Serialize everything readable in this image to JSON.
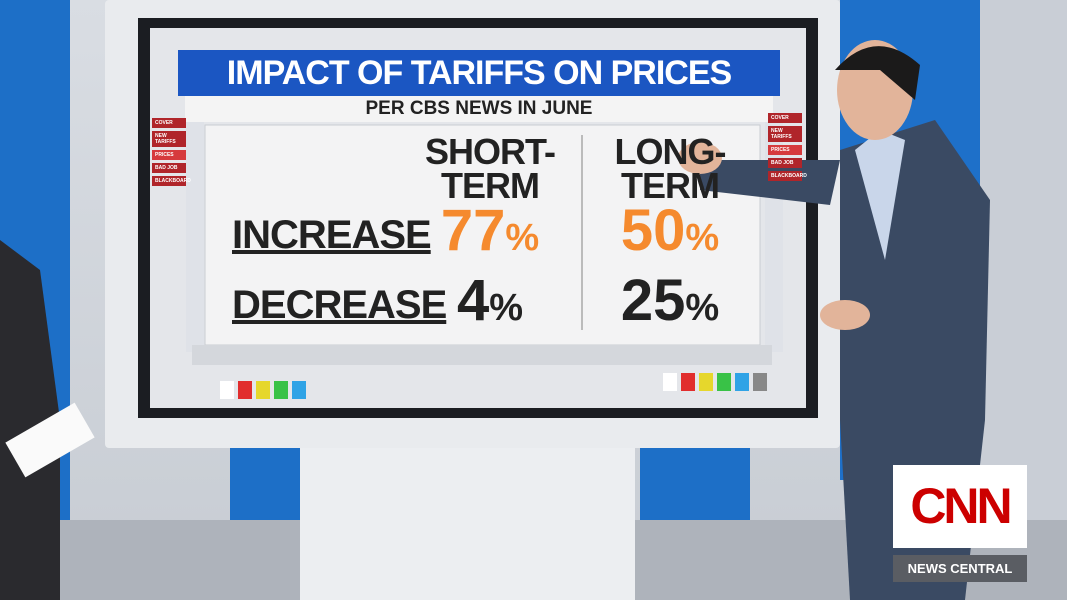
{
  "graphic": {
    "title": "IMPACT OF TARIFFS ON PRICES",
    "subtitle": "PER CBS NEWS IN JUNE",
    "columns": [
      [
        "SHORT-",
        "TERM"
      ],
      [
        "LONG-",
        "TERM"
      ]
    ],
    "rows": [
      {
        "label": "INCREASE",
        "cells": [
          {
            "value": "77",
            "unit": "%"
          },
          {
            "value": "50",
            "unit": "%"
          }
        ]
      },
      {
        "label": "DECREASE",
        "cells": [
          {
            "value": "4",
            "unit": "%"
          },
          {
            "value": "25",
            "unit": "%"
          }
        ]
      }
    ],
    "menu": [
      "COVER",
      "NEW TARIFFS",
      "PRICES",
      "BAD JOB",
      "BLACKBOARD"
    ]
  },
  "broadcast": {
    "logo": "CNN",
    "show": "NEWS CENTRAL"
  }
}
